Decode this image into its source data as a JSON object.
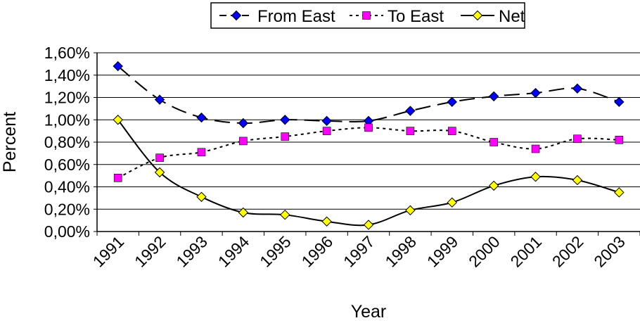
{
  "chart_data": {
    "type": "line",
    "title": "",
    "xlabel": "Year",
    "ylabel": "Percent",
    "categories": [
      "1991",
      "1992",
      "1993",
      "1994",
      "1995",
      "1996",
      "1997",
      "1998",
      "1999",
      "2000",
      "2001",
      "2002",
      "2003"
    ],
    "ylim": [
      0,
      1.6
    ],
    "yticks": [
      0,
      0.2,
      0.4,
      0.6,
      0.8,
      1.0,
      1.2,
      1.4,
      1.6
    ],
    "ytick_labels": [
      "0,00%",
      "0,20%",
      "0,40%",
      "0,60%",
      "0,80%",
      "1,00%",
      "1,20%",
      "1,40%",
      "1,60%"
    ],
    "grid": true,
    "legend_position": "top",
    "series": [
      {
        "name": "From East",
        "color": "#0000ff",
        "marker": "diamond",
        "line_style": "long-dash",
        "values": [
          1.48,
          1.18,
          1.02,
          0.97,
          1.0,
          0.99,
          0.99,
          1.08,
          1.16,
          1.21,
          1.24,
          1.28,
          1.16
        ]
      },
      {
        "name": "To East",
        "color": "#ff00ff",
        "marker": "square",
        "line_style": "dotted",
        "values": [
          0.48,
          0.66,
          0.71,
          0.81,
          0.85,
          0.9,
          0.93,
          0.9,
          0.9,
          0.8,
          0.74,
          0.83,
          0.82
        ]
      },
      {
        "name": "Net",
        "color": "#000000",
        "marker": "diamond",
        "marker_fill": "#ffff00",
        "line_style": "solid",
        "values": [
          1.0,
          0.53,
          0.31,
          0.17,
          0.15,
          0.09,
          0.06,
          0.19,
          0.26,
          0.41,
          0.49,
          0.46,
          0.35
        ]
      }
    ]
  }
}
